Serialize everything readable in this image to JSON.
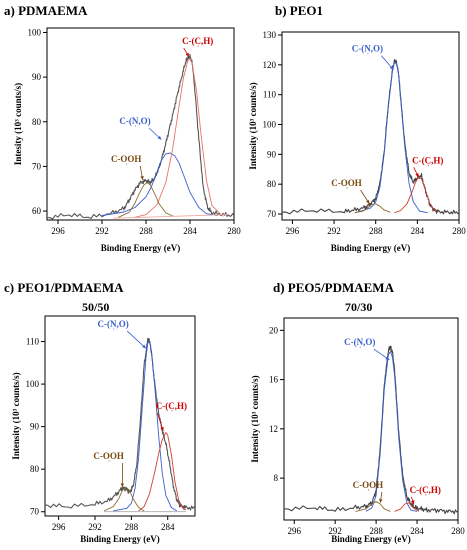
{
  "chart_data": [
    {
      "panel": "a",
      "type": "line",
      "title": "a) PDMAEMA",
      "subtitle": "",
      "xlabel": "Binding Energy (eV)",
      "ylabel": "Intesity (10³ counts/s)",
      "xlim": [
        297,
        280
      ],
      "ylim": [
        58,
        101
      ],
      "xticks": [
        296,
        292,
        288,
        284,
        280
      ],
      "yticks": [
        60,
        70,
        80,
        90,
        100
      ],
      "grid": false,
      "series": [
        {
          "color": "#555555",
          "kind": "envelope",
          "x": [
            297,
            295,
            293,
            291,
            290,
            289.5,
            289,
            288.5,
            288,
            287.6,
            287.2,
            286.8,
            286.4,
            286,
            285.6,
            285.2,
            284.8,
            284.4,
            284.2,
            284,
            283.8,
            283.6,
            283.2,
            282.8,
            282.4,
            282,
            281,
            280
          ],
          "y": [
            58.5,
            59.2,
            58.6,
            59.6,
            60.6,
            62.6,
            64.8,
            66.4,
            66.8,
            66.4,
            67.4,
            69.8,
            73.2,
            77.2,
            81.2,
            85.6,
            89.6,
            93.4,
            94.4,
            94.6,
            93.2,
            88.4,
            76.2,
            65.2,
            60.8,
            59.6,
            59.2,
            59.0
          ]
        },
        {
          "color": "#3a5fcd",
          "kind": "component",
          "x": [
            292,
            290,
            289,
            288,
            287.5,
            287,
            286.6,
            286.2,
            285.8,
            285.4,
            285,
            284.6,
            284,
            283.2,
            282.5,
            281.5
          ],
          "y": [
            59,
            59.8,
            60.8,
            63.2,
            65.5,
            68.8,
            71.4,
            72.8,
            73.0,
            72.4,
            70.8,
            68.2,
            64.2,
            60.8,
            59.4,
            59
          ]
        },
        {
          "color": "#e8736b",
          "kind": "component",
          "x": [
            289,
            288,
            287,
            286.2,
            285.6,
            285,
            284.6,
            284.2,
            284,
            283.8,
            283.4,
            283,
            282.5,
            282,
            281
          ],
          "y": [
            58.6,
            59.2,
            61.4,
            66.4,
            73.6,
            83.4,
            89.8,
            93.6,
            94.2,
            93.0,
            86.8,
            77.2,
            66.8,
            61.2,
            58.8
          ]
        },
        {
          "color": "#8b6b30",
          "kind": "component",
          "x": [
            290.5,
            289.5,
            289,
            288.6,
            288.2,
            287.9,
            287.6,
            287.2,
            286.8,
            286.2,
            285.5
          ],
          "y": [
            58.6,
            59.8,
            61.8,
            64.0,
            65.8,
            66.4,
            65.8,
            63.8,
            61.6,
            59.6,
            58.8
          ]
        },
        {
          "color": "#f0a8a0",
          "kind": "baseline",
          "x": [
            291,
            280.5
          ],
          "y": [
            58.4,
            59.2
          ]
        }
      ],
      "annotations": [
        {
          "text": "C-OOH",
          "color": "#7a4a10",
          "x": 289.8,
          "y": 71.0,
          "ax": 288.3,
          "ay": 67.0
        },
        {
          "text": "C-(N,O)",
          "color": "#3a5fcd",
          "x": 289.0,
          "y": 79.5,
          "ax": 286.6,
          "ay": 76.0
        },
        {
          "text": "C-(C,H)",
          "color": "#d00000",
          "x": 283.3,
          "y": 97.4,
          "ax": 284.1,
          "ay": 94.6
        }
      ]
    },
    {
      "panel": "b",
      "type": "line",
      "title": "b) PEO1",
      "subtitle": "",
      "xlabel": "Binding Energy (eV)",
      "ylabel": "Intensity (10³ counts/s)",
      "xlim": [
        297,
        280
      ],
      "ylim": [
        68,
        131
      ],
      "xticks": [
        296,
        292,
        288,
        284,
        280
      ],
      "yticks": [
        70,
        80,
        90,
        100,
        110,
        120,
        130
      ],
      "grid": false,
      "series": [
        {
          "color": "#444444",
          "kind": "envelope",
          "x": [
            297,
            294,
            291,
            290,
            289,
            288.5,
            288,
            287.6,
            287.2,
            286.8,
            286.4,
            286.2,
            286,
            285.8,
            285.6,
            285.2,
            284.8,
            284.4,
            284,
            283.6,
            283.2,
            282.8,
            282.4,
            282,
            281,
            280
          ],
          "y": [
            70.6,
            71.2,
            70.8,
            71.4,
            72.2,
            73.4,
            75.2,
            80.2,
            90.4,
            106.2,
            118.2,
            121.2,
            120.8,
            117.0,
            108.8,
            93.4,
            83.8,
            80.6,
            82.2,
            82.8,
            77.6,
            73.2,
            71.4,
            70.8,
            70.6,
            70.4
          ]
        },
        {
          "color": "#3a5fcd",
          "kind": "component",
          "x": [
            290,
            288.5,
            288,
            287.6,
            287.2,
            286.8,
            286.4,
            286.2,
            286,
            285.8,
            285.6,
            285.2,
            284.8,
            284.4,
            283.8,
            283
          ],
          "y": [
            70.4,
            72.0,
            74.0,
            79.0,
            89.6,
            105.6,
            117.8,
            121.0,
            120.6,
            116.8,
            108.4,
            92.2,
            80.4,
            74.2,
            71.0,
            70.4
          ]
        },
        {
          "color": "#d04030",
          "kind": "component",
          "x": [
            286.2,
            285.6,
            285,
            284.6,
            284.2,
            283.9,
            283.6,
            283.2,
            282.8,
            282.4,
            282
          ],
          "y": [
            70.4,
            71.2,
            73.4,
            76.6,
            80.4,
            82.4,
            81.8,
            77.8,
            73.6,
            71.4,
            70.6
          ]
        },
        {
          "color": "#8b6b30",
          "kind": "component",
          "x": [
            290,
            289.2,
            288.8,
            288.4,
            288,
            287.6,
            287.2,
            286.6
          ],
          "y": [
            70.4,
            71.0,
            72.0,
            73.2,
            73.4,
            72.6,
            71.4,
            70.6
          ]
        }
      ],
      "annotations": [
        {
          "text": "C-OOH",
          "color": "#7a4a10",
          "x": 290.8,
          "y": 79.4,
          "ax": 288.6,
          "ay": 73.4
        },
        {
          "text": "C-(N,O)",
          "color": "#3a5fcd",
          "x": 288.8,
          "y": 124.4,
          "ax": 286.3,
          "ay": 118.4
        },
        {
          "text": "C-(C,H)",
          "color": "#d00000",
          "x": 283.0,
          "y": 87.0,
          "ax": 283.9,
          "ay": 82.4
        }
      ]
    },
    {
      "panel": "c",
      "type": "line",
      "title": "c) PEO1/PDMAEMA",
      "subtitle": "50/50",
      "xlabel": "Binding Energy (eV)",
      "ylabel": "Intensity (10³ counts/s)",
      "xlim": [
        297.5,
        281
      ],
      "ylim": [
        69,
        116
      ],
      "xticks": [
        296,
        292,
        288,
        284
      ],
      "yticks": [
        70,
        80,
        90,
        100,
        110
      ],
      "grid": false,
      "series": [
        {
          "color": "#555555",
          "kind": "envelope",
          "x": [
            297.5,
            295,
            292,
            290.5,
            289.6,
            289,
            288.6,
            288.2,
            287.8,
            287.4,
            287,
            286.6,
            286.2,
            286,
            285.8,
            285.4,
            285,
            284.6,
            284.2,
            283.8,
            283.4,
            283,
            282.6,
            282,
            281
          ],
          "y": [
            71.6,
            71.2,
            71.8,
            72.6,
            74.2,
            75.6,
            75.4,
            74.6,
            76.0,
            81.2,
            91.8,
            104.4,
            110.4,
            110.2,
            107.6,
            99.6,
            93.2,
            89.0,
            86.0,
            81.4,
            76.2,
            72.8,
            71.4,
            71.0,
            70.8
          ]
        },
        {
          "color": "#3a5fcd",
          "kind": "component",
          "x": [
            290,
            288.5,
            288,
            287.6,
            287.2,
            286.8,
            286.4,
            286.2,
            286,
            285.8,
            285.4,
            285,
            284.6,
            284.2,
            283.6,
            283
          ],
          "y": [
            70.2,
            70.8,
            72.0,
            75.4,
            82.6,
            94.6,
            106.0,
            109.6,
            110.0,
            107.8,
            98.8,
            88.0,
            79.0,
            73.8,
            71.0,
            70.2
          ]
        },
        {
          "color": "#d04030",
          "kind": "component",
          "x": [
            287.2,
            286.6,
            286,
            285.4,
            285,
            284.6,
            284.2,
            284,
            283.6,
            283.2,
            282.8,
            282.4,
            282
          ],
          "y": [
            70.2,
            71.2,
            74.2,
            79.6,
            83.6,
            87.0,
            88.6,
            88.0,
            83.4,
            77.0,
            72.8,
            71.0,
            70.4
          ]
        },
        {
          "color": "#8b6b30",
          "kind": "component",
          "x": [
            291,
            290,
            289.4,
            289,
            288.6,
            288.2,
            287.8,
            287.2,
            286.6
          ],
          "y": [
            70.2,
            71.2,
            73.0,
            75.0,
            75.8,
            75.0,
            73.0,
            71.0,
            70.2
          ]
        },
        {
          "color": "#aaaaaa",
          "kind": "baseline",
          "x": [
            291,
            282
          ],
          "y": [
            70.0,
            70.0
          ]
        }
      ],
      "annotations": [
        {
          "text": "C-OOH",
          "color": "#7a4a10",
          "x": 290.5,
          "y": 82.4,
          "ax": 289.0,
          "ay": 75.8
        },
        {
          "text": "C-(N,O)",
          "color": "#3a5fcd",
          "x": 290.0,
          "y": 113.4,
          "ax": 286.4,
          "ay": 108.4
        },
        {
          "text": "C-(C,H)",
          "color": "#d00000",
          "x": 283.6,
          "y": 94.2,
          "ax": 284.5,
          "ay": 89.0
        }
      ]
    },
    {
      "panel": "d",
      "type": "line",
      "title": "d) PEO5/PDMAEMA",
      "subtitle": "70/30",
      "xlabel": "Binding Energy (eV)",
      "ylabel": "Intensity (10³ counts/s)",
      "xlim": [
        297,
        280
      ],
      "ylim": [
        4.6,
        21
      ],
      "xticks": [
        296,
        292,
        288,
        284,
        280
      ],
      "yticks": [
        8,
        12,
        16,
        20
      ],
      "grid": false,
      "series": [
        {
          "color": "#444444",
          "kind": "envelope",
          "x": [
            297,
            294,
            292,
            290,
            289,
            288.4,
            288,
            287.6,
            287.2,
            286.8,
            286.6,
            286.4,
            286.2,
            286,
            285.8,
            285.4,
            285,
            284.6,
            284.2,
            283.6,
            283,
            282,
            281,
            280
          ],
          "y": [
            5.5,
            5.6,
            5.4,
            5.6,
            5.7,
            6.0,
            7.0,
            10.4,
            15.6,
            18.4,
            18.6,
            18.2,
            16.8,
            14.4,
            11.8,
            8.2,
            6.5,
            5.9,
            5.6,
            5.5,
            5.4,
            5.4,
            5.3,
            5.3
          ]
        },
        {
          "color": "#3a5fcd",
          "kind": "component",
          "x": [
            289,
            288.4,
            288,
            287.6,
            287.2,
            286.8,
            286.6,
            286.4,
            286.2,
            286,
            285.8,
            285.4,
            285,
            284.6,
            284
          ],
          "y": [
            5.3,
            5.6,
            6.6,
            10.0,
            15.2,
            18.0,
            18.3,
            17.8,
            16.4,
            14.0,
            11.4,
            7.8,
            6.0,
            5.4,
            5.3
          ]
        },
        {
          "color": "#8b6b30",
          "kind": "component",
          "x": [
            290,
            289,
            288.4,
            288,
            287.6,
            287.2,
            286.6
          ],
          "y": [
            5.3,
            5.5,
            5.9,
            6.1,
            5.9,
            5.5,
            5.3
          ]
        },
        {
          "color": "#d04030",
          "kind": "component",
          "x": [
            286.2,
            285.6,
            285.2,
            284.8,
            284.4,
            283.8
          ],
          "y": [
            5.3,
            5.5,
            5.9,
            6.0,
            5.6,
            5.3
          ]
        }
      ],
      "annotations": [
        {
          "text": "C-OOH",
          "color": "#7a4a10",
          "x": 288.8,
          "y": 7.2,
          "ax": 287.6,
          "ay": 6.0
        },
        {
          "text": "C-(N,O)",
          "color": "#3a5fcd",
          "x": 289.6,
          "y": 18.8,
          "ax": 286.7,
          "ay": 17.6
        },
        {
          "text": "C-(C,H)",
          "color": "#d00000",
          "x": 283.2,
          "y": 6.8,
          "ax": 284.3,
          "ay": 5.9
        }
      ]
    }
  ]
}
